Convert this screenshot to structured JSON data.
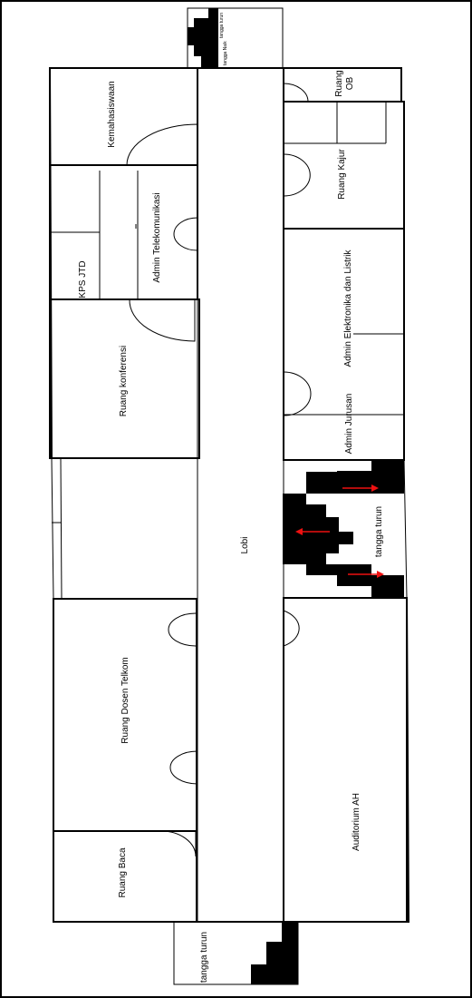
{
  "rooms": {
    "kemahasiswaan": "Kemahasiswaan",
    "admin_telekomunikasi": "Admin  Telekomunikasi",
    "kps_jtd": "KPS JTD",
    "ruang_konferensi": "Ruang konferensi",
    "ruang_dosen_telkom": "Ruang Dosen Telkom",
    "ruang_baca": "Ruang Baca",
    "ruang_ob_line1": "Ruang",
    "ruang_ob_line2": "OB",
    "ruang_kajur": "Ruang Kajur",
    "admin_elektronika": "Admin Elektronika dan Listrik",
    "admin_jurusan": "Admin Jurusan",
    "auditorium": "Auditorium AH",
    "lobi": "Lobi"
  },
  "stairs": {
    "top_label_down": "tangga turun",
    "top_label_up": "tangga Naik",
    "middle_label": "tangga turun",
    "bottom_label": "tangga turun"
  },
  "colors": {
    "wall": "#000000",
    "stair_fill": "#000000",
    "arrow": "#e11111"
  },
  "icons": {
    "door": "door-swing-arc",
    "stair": "stair-steps",
    "arrow": "direction-arrow"
  }
}
